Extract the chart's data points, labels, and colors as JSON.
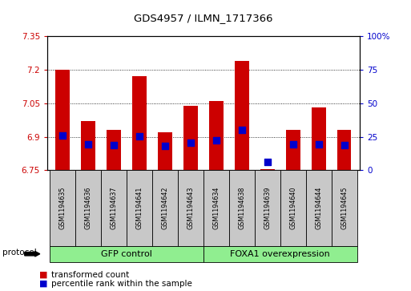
{
  "title": "GDS4957 / ILMN_1717366",
  "samples": [
    "GSM1194635",
    "GSM1194636",
    "GSM1194637",
    "GSM1194641",
    "GSM1194642",
    "GSM1194643",
    "GSM1194634",
    "GSM1194638",
    "GSM1194639",
    "GSM1194640",
    "GSM1194644",
    "GSM1194645"
  ],
  "red_values": [
    7.2,
    6.97,
    6.93,
    7.17,
    6.92,
    7.04,
    7.06,
    7.24,
    6.755,
    6.93,
    7.03,
    6.93
  ],
  "blue_values": [
    6.905,
    6.865,
    6.862,
    6.902,
    6.86,
    6.873,
    6.885,
    6.93,
    6.787,
    6.865,
    6.868,
    6.862
  ],
  "ylim_left": [
    6.75,
    7.35
  ],
  "ylim_right": [
    0,
    100
  ],
  "yticks_left": [
    6.75,
    6.9,
    7.05,
    7.2,
    7.35
  ],
  "ytick_labels_left": [
    "6.75",
    "6.9",
    "7.05",
    "7.2",
    "7.35"
  ],
  "yticks_right": [
    0,
    25,
    50,
    75,
    100
  ],
  "ytick_labels_right": [
    "0",
    "25",
    "50",
    "75",
    "100%"
  ],
  "bar_color": "#CC0000",
  "dot_color": "#0000CC",
  "base_value": 6.75,
  "grid_color": "#000000",
  "bg_color": "#FFFFFF",
  "protocol_label": "protocol",
  "left_axis_color": "#CC0000",
  "right_axis_color": "#0000CC",
  "bar_width": 0.55,
  "dot_size": 35,
  "group1_label": "GFP control",
  "group2_label": "FOXA1 overexpression",
  "group_color": "#90EE90",
  "sample_box_color": "#C8C8C8",
  "legend_red_label": "transformed count",
  "legend_blue_label": "percentile rank within the sample"
}
